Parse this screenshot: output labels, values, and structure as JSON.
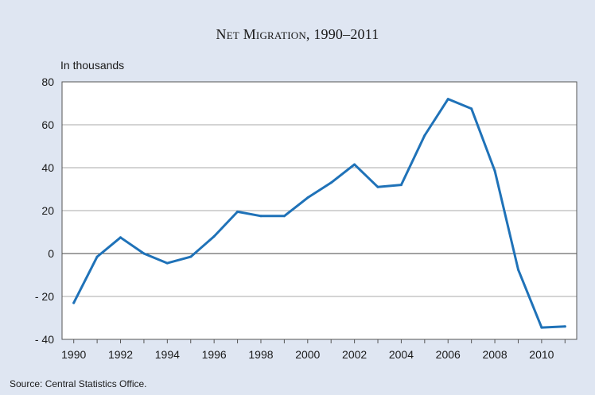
{
  "chart_data": {
    "type": "line",
    "title": "Net Migration, 1990–2011",
    "unit_label": "In thousands",
    "source": "Source: Central Statistics Office.",
    "x": [
      1990,
      1991,
      1992,
      1993,
      1994,
      1995,
      1996,
      1997,
      1998,
      1999,
      2000,
      2001,
      2002,
      2003,
      2004,
      2005,
      2006,
      2007,
      2008,
      2009,
      2010,
      2011
    ],
    "series": [
      {
        "values": [
          -23,
          -1.5,
          7.5,
          0,
          -4.5,
          -1.5,
          8,
          19.5,
          17.5,
          17.5,
          26,
          33,
          41.5,
          31,
          32,
          55,
          72,
          67.5,
          38.5,
          -7.5,
          -34.5,
          -34
        ],
        "color": "#1f72b8"
      }
    ],
    "ylim": [
      -40,
      80
    ],
    "yticks": [
      80,
      60,
      40,
      20,
      0,
      -20,
      -40
    ],
    "ytick_labels": [
      "80",
      "60",
      "40",
      "20",
      "0",
      "- 20",
      "- 40"
    ],
    "xlim": [
      1989.5,
      2011.5
    ],
    "xticks": [
      1990,
      1992,
      1994,
      1996,
      1998,
      2000,
      2002,
      2004,
      2006,
      2008,
      2010
    ],
    "xtick_labels": [
      "1990",
      "1992",
      "1994",
      "1996",
      "1998",
      "2000",
      "2002",
      "2004",
      "2006",
      "2008",
      "2010"
    ],
    "grid": true,
    "legend": "none"
  }
}
